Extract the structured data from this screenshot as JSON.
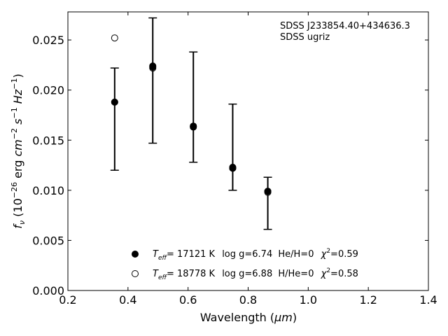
{
  "chart_data": {
    "type": "scatter",
    "xlabel_main": "Wavelength (",
    "xlabel_unit": "μm",
    "xlabel_end": ")",
    "ylabel": "f_ν (10^-26 erg cm^-2 s^-1 Hz^-1)",
    "xlim": [
      0.2,
      1.4
    ],
    "ylim": [
      0.0,
      0.0278
    ],
    "x_ticks": [
      0.2,
      0.4,
      0.6,
      0.8,
      1.0,
      1.2,
      1.4
    ],
    "x_tick_labels": [
      "0.2",
      "0.4",
      "0.6",
      "0.8",
      "1.0",
      "1.2",
      "1.4"
    ],
    "y_ticks": [
      0.0,
      0.005,
      0.01,
      0.015,
      0.02,
      0.025
    ],
    "y_tick_labels": [
      "0.000",
      "0.005",
      "0.010",
      "0.015",
      "0.020",
      "0.025"
    ],
    "grid": false,
    "annotations": [
      "SDSS J233854.40+434636.3",
      "SDSS ugriz"
    ],
    "observed": {
      "x": [
        0.3557,
        0.4825,
        0.6176,
        0.7486,
        0.8654
      ],
      "y": [
        0.0188,
        0.0223,
        0.0163,
        0.0122,
        0.0099
      ],
      "err_low": [
        0.012,
        0.0147,
        0.0128,
        0.01,
        0.0061
      ],
      "err_high": [
        0.0222,
        0.0272,
        0.0238,
        0.0186,
        0.0113
      ]
    },
    "series": [
      {
        "marker": "filled-circle",
        "x": [
          0.3557,
          0.4825,
          0.6176,
          0.7486,
          0.8654
        ],
        "y": [
          0.0188,
          0.0224,
          0.0164,
          0.0123,
          0.0099
        ]
      },
      {
        "marker": "open-circle",
        "x": [
          0.3557,
          0.4825,
          0.6176,
          0.7486,
          0.8654
        ],
        "y": [
          0.0252,
          0.0222,
          0.0164,
          0.0122,
          0.0098
        ]
      }
    ],
    "legend": {
      "placement": "lower-center",
      "entries": [
        {
          "teff": "= 17121 K",
          "logg": "log g=6.74",
          "comp": "He/H=0",
          "chi2": "=0.59"
        },
        {
          "teff": "= 18778 K",
          "logg": "log g=6.88",
          "comp": "H/He=0",
          "chi2": "=0.58"
        }
      ]
    }
  }
}
